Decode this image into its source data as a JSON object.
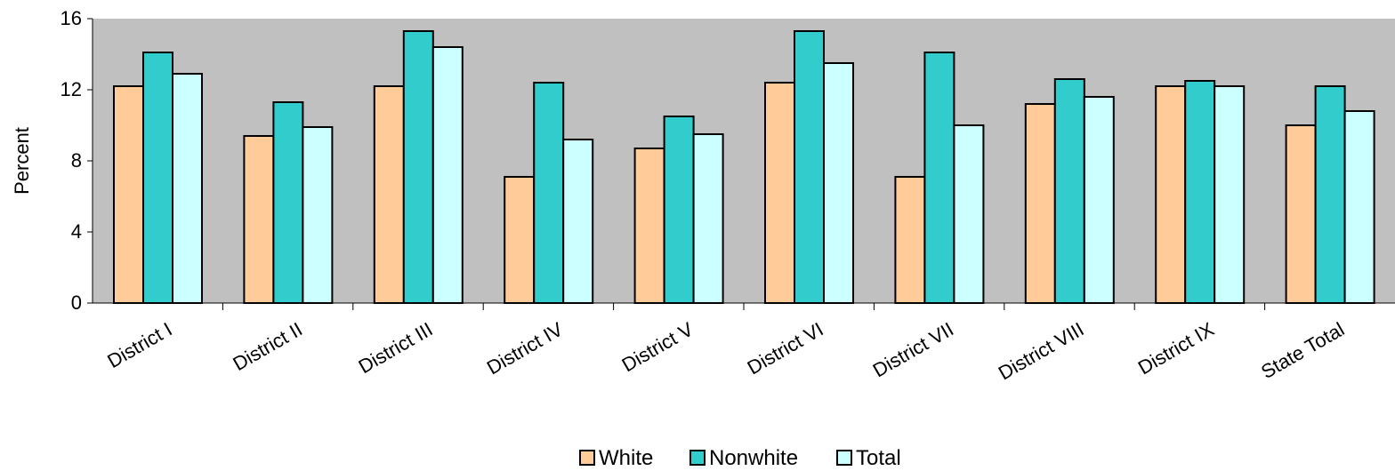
{
  "chart_data": {
    "type": "bar",
    "title": "",
    "xlabel": "",
    "ylabel": "Percent",
    "ylim": [
      0,
      16
    ],
    "yticks": [
      0,
      4,
      8,
      12,
      16
    ],
    "grid": false,
    "legend_position": "bottom",
    "plot_background": "#C0C0C0",
    "categories": [
      "District I",
      "District II",
      "District III",
      "District IV",
      "District V",
      "District VI",
      "District VII",
      "District VIII",
      "District IX",
      "State Total"
    ],
    "series": [
      {
        "name": "White",
        "color": "#FFCC99",
        "values": [
          12.2,
          9.4,
          12.2,
          7.1,
          8.7,
          12.4,
          7.1,
          11.2,
          12.2,
          10.0
        ]
      },
      {
        "name": "Nonwhite",
        "color": "#33CCCC",
        "values": [
          14.1,
          11.3,
          15.3,
          12.4,
          10.5,
          15.3,
          14.1,
          12.6,
          12.5,
          12.2
        ]
      },
      {
        "name": "Total",
        "color": "#CCFFFF",
        "values": [
          12.9,
          9.9,
          14.4,
          9.2,
          9.5,
          13.5,
          10.0,
          11.6,
          12.2,
          10.8
        ]
      }
    ]
  }
}
